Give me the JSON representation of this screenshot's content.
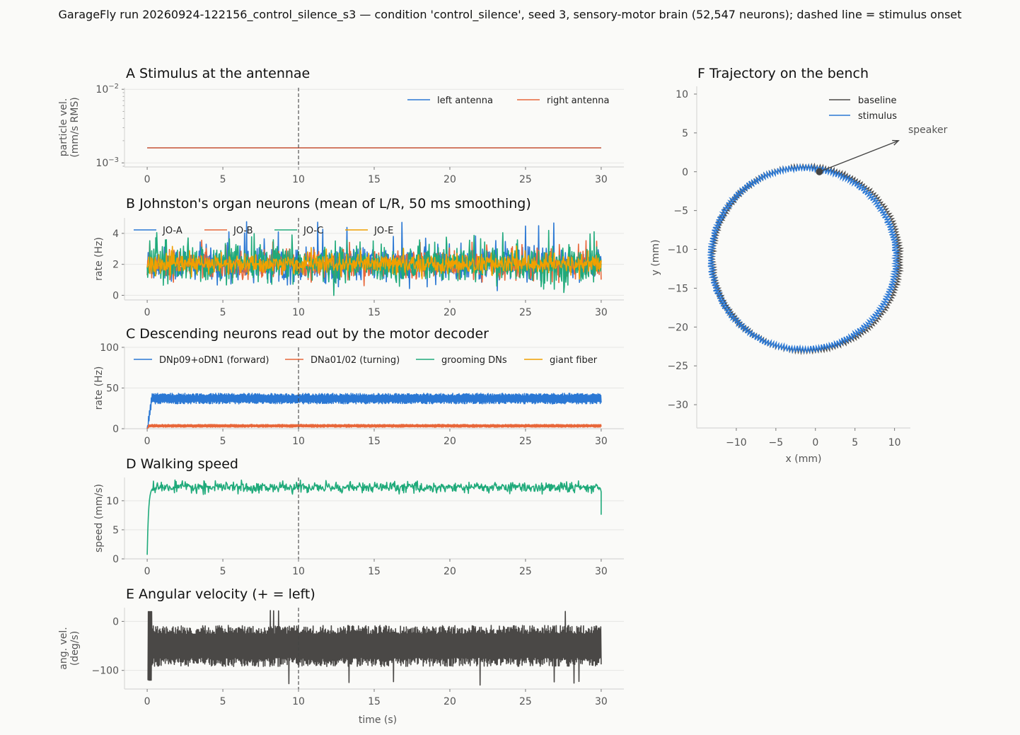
{
  "suptitle": "GarageFly run 20260924-122156_control_silence_s3 — condition 'control_silence', seed 3, sensory-motor brain (52,547 neurons); dashed line = stimulus onset",
  "colors": {
    "background": "#fafaf8",
    "blue": "#2b78d4",
    "orange": "#e8673a",
    "green": "#1faa7a",
    "amber": "#f0a000",
    "dark": "#4a4846",
    "onset": "#444444"
  },
  "chart_data": [
    {
      "id": "A",
      "type": "line",
      "title": "A  Stimulus at the antennae",
      "xlabel": "",
      "ylabel": [
        "particle vel.",
        "(mm/s RMS)"
      ],
      "yscale": "log",
      "ylim": [
        0.00088,
        0.0105
      ],
      "xlim": [
        -1.5,
        31.5
      ],
      "xticks": [
        0,
        5,
        10,
        15,
        20,
        25,
        30
      ],
      "yticks": [
        {
          "value": 0.001,
          "base": "10",
          "exp": "−3"
        },
        {
          "value": 0.01,
          "base": "10",
          "exp": "−2"
        }
      ],
      "onset": 10,
      "legend": "top-right",
      "series": [
        {
          "name": "left antenna",
          "color": "#2b78d4",
          "x": [
            0,
            30
          ],
          "y": [
            0.0016,
            0.0016
          ]
        },
        {
          "name": "right antenna",
          "color": "#e8673a",
          "x": [
            0,
            30
          ],
          "y": [
            0.0016,
            0.0016
          ]
        }
      ]
    },
    {
      "id": "B",
      "type": "line",
      "title": "B  Johnston's organ neurons (mean of L/R, 50 ms smoothing)",
      "xlabel": "",
      "ylabel": [
        "rate (Hz)"
      ],
      "ylim": [
        -0.3,
        5.0
      ],
      "xlim": [
        -1.5,
        31.5
      ],
      "xticks": [
        0,
        5,
        10,
        15,
        20,
        25,
        30
      ],
      "yticks": [
        0,
        2,
        4
      ],
      "onset": 10,
      "legend": "top-left",
      "series": [
        {
          "name": "JO-A",
          "color": "#2b78d4",
          "mean": 2.0,
          "amp": 1.0,
          "spike_max": 4.8
        },
        {
          "name": "JO-B",
          "color": "#e8673a",
          "mean": 2.0,
          "amp": 0.8,
          "spike_max": 3.8
        },
        {
          "name": "JO-C",
          "color": "#1faa7a",
          "mean": 2.0,
          "amp": 1.1,
          "spike_max": 4.2
        },
        {
          "name": "JO-E",
          "color": "#f0a000",
          "mean": 2.0,
          "amp": 0.55,
          "spike_max": 3.2
        }
      ]
    },
    {
      "id": "C",
      "type": "line",
      "title": "C  Descending neurons read out by the motor decoder",
      "xlabel": "",
      "ylabel": [
        "rate (Hz)"
      ],
      "ylim": [
        0,
        100
      ],
      "xlim": [
        -1.5,
        31.5
      ],
      "xticks": [
        0,
        5,
        10,
        15,
        20,
        25,
        30
      ],
      "yticks": [
        0,
        50,
        100
      ],
      "onset": 10,
      "legend": "top",
      "series": [
        {
          "name": "DNp09+oDN1 (forward)",
          "color": "#2b78d4",
          "mean": 37,
          "amp": 6.5,
          "rise_to": 0.3
        },
        {
          "name": "DNa01/02 (turning)",
          "color": "#e8673a",
          "mean": 3.5,
          "amp": 1.8,
          "rise_to": 0.1
        },
        {
          "name": "grooming DNs",
          "color": "#1faa7a",
          "mean": 0,
          "amp": 0
        },
        {
          "name": "giant fiber",
          "color": "#f0a000",
          "mean": 0,
          "amp": 0
        }
      ]
    },
    {
      "id": "D",
      "type": "line",
      "title": "D  Walking speed",
      "xlabel": "",
      "ylabel": [
        "speed (mm/s)"
      ],
      "ylim": [
        0,
        14
      ],
      "xlim": [
        -1.5,
        31.5
      ],
      "xticks": [
        0,
        5,
        10,
        15,
        20,
        25,
        30
      ],
      "yticks": [
        0,
        5,
        10
      ],
      "onset": 10,
      "series": [
        {
          "name": "",
          "color": "#1faa7a",
          "start": 0.7,
          "mean": 12.3,
          "amp": 0.9,
          "end": 7.6
        }
      ]
    },
    {
      "id": "E",
      "type": "line",
      "title": "E  Angular velocity (+ = left)",
      "xlabel": "time (s)",
      "ylabel": [
        "ang. vel.",
        "(deg/s)"
      ],
      "ylim": [
        -138,
        28
      ],
      "xlim": [
        -1.5,
        31.5
      ],
      "xticks": [
        0,
        5,
        10,
        15,
        20,
        25,
        30
      ],
      "yticks": [
        0,
        -100
      ],
      "onset": 10,
      "series": [
        {
          "name": "",
          "color": "#4a4846",
          "mean": -50,
          "amp": 42,
          "min": -130,
          "max": 25
        }
      ]
    },
    {
      "id": "F",
      "type": "line",
      "title": "F  Trajectory on the bench",
      "xlabel": "x (mm)",
      "ylabel": [
        "y (mm)"
      ],
      "xlim": [
        -15,
        12
      ],
      "ylim": [
        -33,
        11
      ],
      "xticks": [
        -10,
        -5,
        0,
        5,
        10
      ],
      "yticks": [
        10,
        5,
        0,
        -5,
        -10,
        -15,
        -20,
        -25,
        -30
      ],
      "legend": "top-right",
      "circle": {
        "cx": -1.5,
        "cy": -11.2,
        "r": 11.7,
        "start": [
          0.5,
          0
        ]
      },
      "series": [
        {
          "name": "baseline",
          "color": "#4a4846"
        },
        {
          "name": "stimulus",
          "color": "#2b78d4"
        }
      ],
      "annotation": {
        "text": "speaker",
        "from": [
          0.5,
          0
        ],
        "to": [
          10.5,
          4.0
        ]
      }
    }
  ]
}
